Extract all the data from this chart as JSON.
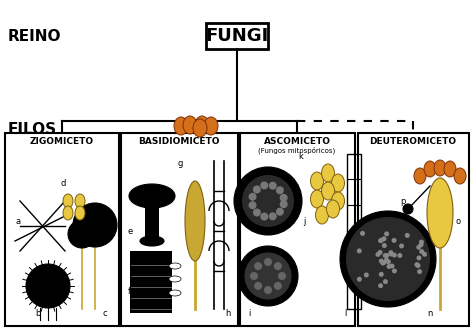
{
  "title": "FUNGI",
  "reino_label": "REINO",
  "filos_label": "FILOS",
  "background_color": "#ffffff",
  "yellow": "#e8c840",
  "orange": "#d4701a",
  "tan": "#c8a832",
  "black": "#000000"
}
